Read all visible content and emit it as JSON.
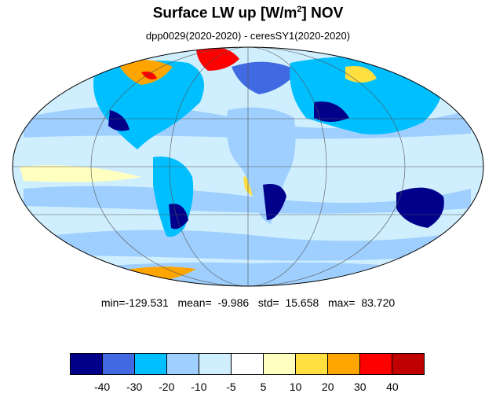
{
  "title": {
    "main": "Surface LW up [W/m",
    "sup": "2",
    "rest": "]  NOV"
  },
  "subtitle": "dpp0029(2020-2020) - ceresSY1(2020-2020)",
  "stats": {
    "text": "min=-129.531   mean=  -9.986   std=  15.658   max=  83.720",
    "min": -129.531,
    "mean": -9.986,
    "std": 15.658,
    "max": 83.72
  },
  "colorbar": {
    "colors": [
      "#00008b",
      "#4169e1",
      "#00bfff",
      "#9fcfff",
      "#cfefff",
      "#ffffff",
      "#ffffc0",
      "#ffe040",
      "#ffa500",
      "#ff0000",
      "#c00000"
    ],
    "labels": [
      "-40",
      "-30",
      "-20",
      "-10",
      "-5",
      "5",
      "10",
      "20",
      "30",
      "40"
    ]
  },
  "map": {
    "projection": "mollweide",
    "ocean_color": "#cfefff",
    "land_color": "#00bfff"
  }
}
